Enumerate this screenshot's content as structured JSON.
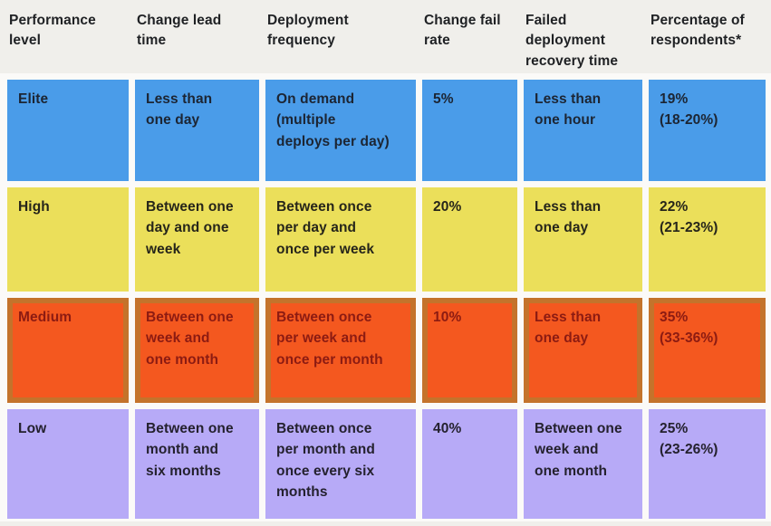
{
  "colors": {
    "page_background": "#f0efeb",
    "grid_gap_background": "#fbfaf8",
    "header_text": "#1f2124",
    "elite_blue": "#4a9ce9",
    "high_yellow": "#ebdf5a",
    "medium_orange": "#f4581f",
    "medium_border_ochre": "#c4732b",
    "medium_text_maroon": "#8c1b12",
    "low_purple": "#b7aaf7",
    "dark_text": "#1c2533"
  },
  "header": {
    "columns": [
      {
        "label": "Performance\nlevel"
      },
      {
        "label": "Change lead\ntime"
      },
      {
        "label": "Deployment\nfrequency"
      },
      {
        "label": "Change fail\nrate"
      },
      {
        "label": "Failed\ndeployment\nrecovery time"
      },
      {
        "label": "Percentage of\nrespondents*"
      }
    ]
  },
  "rows": [
    {
      "level": "Elite",
      "style": "--bg:#4a9ce9;--fg:#1c2533",
      "cells": [
        "Elite",
        "Less than\none day",
        "On demand\n(multiple\ndeploys per day)",
        "5%",
        "Less than\none hour",
        "19%\n(18-20%)"
      ]
    },
    {
      "level": "High",
      "style": "--bg:#ebdf5a;--fg:#26251a",
      "cells": [
        "High",
        "Between one\nday and one\nweek",
        "Between once\nper day and\nonce per week",
        "20%",
        "Less than\none day",
        "22%\n(21-23%)"
      ]
    },
    {
      "level": "Medium",
      "style": "--bg:#f4581f;--fg:#8c1b12;--bd:6px solid #c4732b",
      "cells": [
        "Medium",
        "Between one\nweek and\none month",
        "Between once\nper week and\nonce per month",
        "10%",
        "Less than\none day",
        "35%\n(33-36%)"
      ]
    },
    {
      "level": "Low",
      "style": "--bg:#b7aaf7;--fg:#24212e",
      "cells": [
        "Low",
        "Between one\nmonth and\nsix months",
        "Between once\nper month and\nonce every six\nmonths",
        "40%",
        "Between one\nweek and\none month",
        "25%\n(23-26%)"
      ]
    }
  ],
  "chart_data": {
    "type": "table",
    "title": "Software delivery performance levels",
    "columns": [
      "Performance level",
      "Change lead time",
      "Deployment frequency",
      "Change fail rate",
      "Failed deployment recovery time",
      "Percentage of respondents*"
    ],
    "rows": [
      {
        "performance_level": "Elite",
        "change_lead_time": "Less than one day",
        "deployment_frequency": "On demand (multiple deploys per day)",
        "change_fail_rate": "5%",
        "failed_deployment_recovery_time": "Less than one hour",
        "percentage_of_respondents": "19% (18-20%)",
        "row_color": "#4a9ce9"
      },
      {
        "performance_level": "High",
        "change_lead_time": "Between one day and one week",
        "deployment_frequency": "Between once per day and once per week",
        "change_fail_rate": "20%",
        "failed_deployment_recovery_time": "Less than one day",
        "percentage_of_respondents": "22% (21-23%)",
        "row_color": "#ebdf5a"
      },
      {
        "performance_level": "Medium",
        "change_lead_time": "Between one week and one month",
        "deployment_frequency": "Between once per week and once per month",
        "change_fail_rate": "10%",
        "failed_deployment_recovery_time": "Less than one day",
        "percentage_of_respondents": "35% (33-36%)",
        "row_color": "#f4581f"
      },
      {
        "performance_level": "Low",
        "change_lead_time": "Between one month and six months",
        "deployment_frequency": "Between once per month and once every six months",
        "change_fail_rate": "40%",
        "failed_deployment_recovery_time": "Between one week and one month",
        "percentage_of_respondents": "25% (23-26%)",
        "row_color": "#b7aaf7"
      }
    ],
    "layout": {
      "legend": "none",
      "grid": "off",
      "row_highlight": "Medium row outlined with darker ochre border"
    }
  }
}
